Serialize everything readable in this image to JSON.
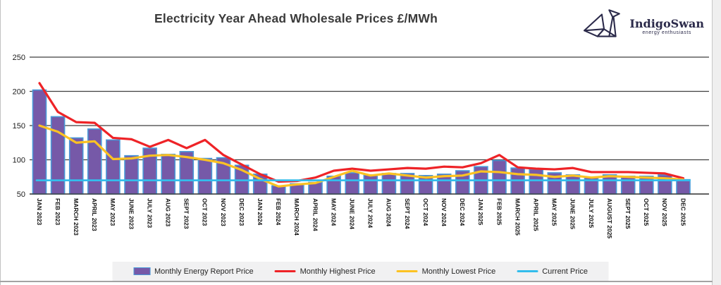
{
  "title": "Electricity Year Ahead Wholesale Prices £/MWh",
  "logo": {
    "name": "IndigoSwan",
    "tagline": "energy enthusiasts",
    "color": "#2b2a4a"
  },
  "legend": {
    "items": [
      {
        "label": "Monthly Energy Report Price",
        "swatch": "bar",
        "color": "#7659a8",
        "border_color": "#4a99d8"
      },
      {
        "label": "Monthly Highest Price",
        "swatch": "line",
        "color": "#ee2327"
      },
      {
        "label": "Monthly Lowest Price",
        "swatch": "line",
        "color": "#fcc223"
      },
      {
        "label": "Current Price",
        "swatch": "line",
        "color": "#33bdec"
      }
    ]
  },
  "chart_data": {
    "type": "bar",
    "title": "Electricity Year Ahead Wholesale Prices £/MWh",
    "xlabel": "",
    "ylabel": "",
    "ylim": [
      50,
      250
    ],
    "yticks": [
      50,
      100,
      150,
      200,
      250
    ],
    "grid": "horizontal",
    "grid_color": "#3f3f3f",
    "legend_position": "bottom",
    "categories": [
      "JAN 2023",
      "FEB 2023",
      "MARCH 2023",
      "APRIL 2023",
      "MAY 2023",
      "JUNE 2023",
      "JULY 2023",
      "AUG 2023",
      "SEPT 2023",
      "OCT 2023",
      "NOV 2023",
      "DEC 2023",
      "JAN 2024",
      "FEB 2024",
      "MARCH 2024",
      "APRIL 2024",
      "MAY 2024",
      "JUNE 2024",
      "JULY 2024",
      "AUG 2024",
      "SEPT 2024",
      "OCT 2024",
      "NOV 2024",
      "DEC 2024",
      "JAN 2025",
      "FEB 2025",
      "MARCH 2025",
      "APRIL 2025",
      "MAY 2025",
      "JUNE 2025",
      "JULY 2025",
      "AUGUST 2025",
      "SEPT 2025",
      "OCT 2025",
      "NOV 2025",
      "DEC 2025"
    ],
    "series": [
      {
        "name": "Monthly Energy Report Price",
        "type": "bar",
        "color": "#7659a8",
        "border_color": "#4a99d8",
        "values": [
          202,
          163,
          132,
          145,
          129,
          106,
          117,
          108,
          112,
          102,
          103,
          92,
          79,
          62,
          65,
          67,
          76,
          81,
          78,
          80,
          80,
          77,
          79,
          84,
          90,
          99,
          88,
          86,
          81,
          78,
          74,
          78,
          76,
          76,
          78,
          71
        ]
      },
      {
        "name": "Monthly Highest Price",
        "type": "line",
        "color": "#ee2327",
        "values": [
          212,
          170,
          155,
          154,
          132,
          130,
          119,
          129,
          117,
          129,
          107,
          93,
          79,
          68,
          69,
          74,
          84,
          87,
          84,
          86,
          88,
          87,
          90,
          89,
          95,
          107,
          89,
          87,
          86,
          88,
          82,
          82,
          82,
          81,
          80,
          73
        ]
      },
      {
        "name": "Monthly Lowest Price",
        "type": "line",
        "color": "#fcc223",
        "values": [
          150,
          141,
          125,
          127,
          101,
          102,
          106,
          107,
          104,
          100,
          95,
          85,
          72,
          61,
          64,
          66,
          75,
          84,
          77,
          80,
          77,
          74,
          76,
          77,
          83,
          82,
          79,
          78,
          75,
          77,
          74,
          76,
          75,
          74,
          73,
          71
        ]
      },
      {
        "name": "Current Price",
        "type": "constant",
        "color": "#33bdec",
        "value": 70
      }
    ]
  }
}
